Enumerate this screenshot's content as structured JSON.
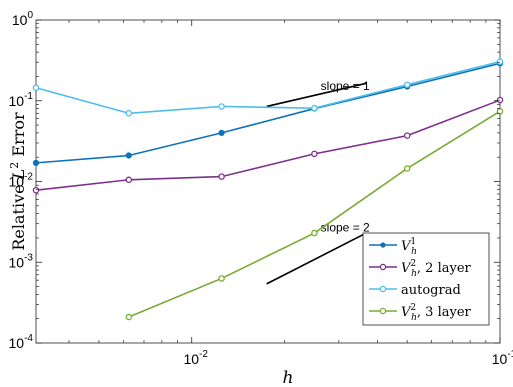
{
  "chart_data": {
    "type": "line",
    "xscale": "log",
    "yscale": "log",
    "xlim": [
      0.003125,
      0.1
    ],
    "ylim": [
      0.0001,
      1
    ],
    "grid": false,
    "legend_placement": "bottom-right",
    "xlabel": "h",
    "ylabel": {
      "prefix": "Relative ",
      "symbol": "L",
      "sup": "2",
      "suffix": " Error"
    },
    "x_ticks": [
      {
        "value": 0.01,
        "base": "10",
        "exp": "-2"
      },
      {
        "value": 0.1,
        "base": "10",
        "exp": "-1"
      }
    ],
    "y_ticks": [
      {
        "value": 0.0001,
        "base": "10",
        "exp": "-4"
      },
      {
        "value": 0.001,
        "base": "10",
        "exp": "-3"
      },
      {
        "value": 0.01,
        "base": "10",
        "exp": "-2"
      },
      {
        "value": 0.1,
        "base": "10",
        "exp": "-1"
      },
      {
        "value": 1,
        "base": "10",
        "exp": "0"
      }
    ],
    "series": [
      {
        "id": "vh1",
        "label": {
          "sym": "V",
          "sub": "h",
          "sup": "1",
          "text": ""
        },
        "color": "#0c72bd",
        "marker": "dot",
        "x": [
          0.003125,
          0.00625,
          0.0125,
          0.025,
          0.05,
          0.1
        ],
        "y": [
          0.017,
          0.021,
          0.04,
          0.08,
          0.15,
          0.29
        ]
      },
      {
        "id": "vh2-2layer",
        "label": {
          "sym": "V",
          "sub": "h",
          "sup": "2",
          "text": ", 2 layer"
        },
        "color": "#7e2f8e",
        "marker": "circle",
        "x": [
          0.003125,
          0.00625,
          0.0125,
          0.025,
          0.05,
          0.1
        ],
        "y": [
          0.0078,
          0.0105,
          0.0115,
          0.022,
          0.037,
          0.102
        ]
      },
      {
        "id": "autograd",
        "label": {
          "sym": "",
          "sub": "",
          "sup": "",
          "text": "autograd"
        },
        "color": "#4dbeee",
        "marker": "circle",
        "x": [
          0.003125,
          0.00625,
          0.0125,
          0.025,
          0.05,
          0.1
        ],
        "y": [
          0.145,
          0.07,
          0.085,
          0.081,
          0.158,
          0.305
        ]
      },
      {
        "id": "vh2-3layer",
        "label": {
          "sym": "V",
          "sub": "h",
          "sup": "2",
          "text": ", 3 layer"
        },
        "color": "#77ac30",
        "marker": "circle",
        "x": [
          0.00625,
          0.0125,
          0.025,
          0.05,
          0.1
        ],
        "y": [
          0.00021,
          0.00063,
          0.0023,
          0.0145,
          0.074
        ]
      }
    ],
    "reference_lines": [
      {
        "id": "slope-1",
        "label": "slope = 1",
        "x": [
          0.0175,
          0.037
        ],
        "y": [
          0.085,
          0.165
        ],
        "label_at": [
          0.0262,
          0.135
        ]
      },
      {
        "id": "slope-2",
        "label": "slope = 2",
        "x": [
          0.0175,
          0.036
        ],
        "y": [
          0.00054,
          0.0022
        ],
        "label_at": [
          0.0262,
          0.0024
        ]
      }
    ]
  }
}
